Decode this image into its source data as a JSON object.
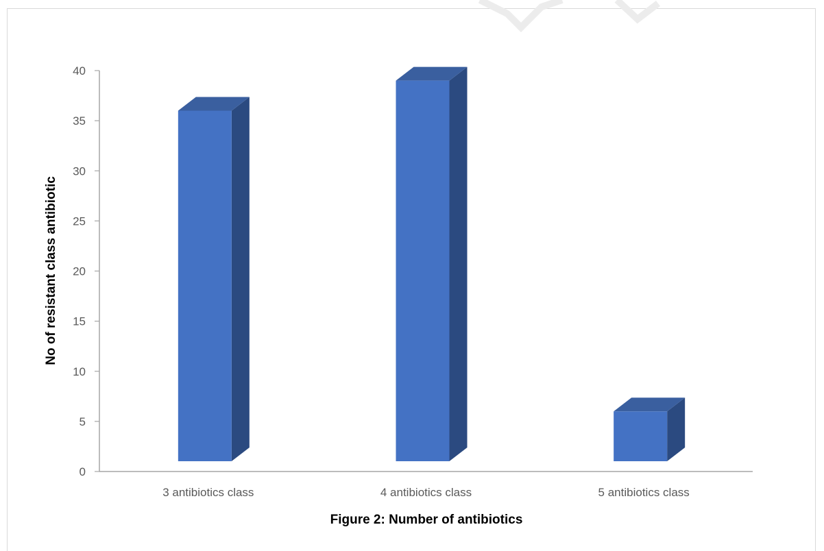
{
  "chart_data": {
    "type": "bar",
    "style": "3d-column",
    "categories": [
      "3 antibiotics class",
      "4 antibiotics class",
      "5 antibiotics class"
    ],
    "values": [
      36,
      39,
      6
    ],
    "title": "Figure 2: Number of antibiotics",
    "xlabel": "",
    "ylabel": "No of resistant class antibiotic",
    "ylim": [
      0,
      40
    ],
    "yticks": [
      0,
      5,
      10,
      15,
      20,
      25,
      30,
      35,
      40
    ],
    "grid": false,
    "legend": "none",
    "colors": {
      "front": "#4472c4",
      "side": "#2b4a80",
      "top": "#3a5f9f",
      "axis": "#a6a6a6"
    }
  }
}
